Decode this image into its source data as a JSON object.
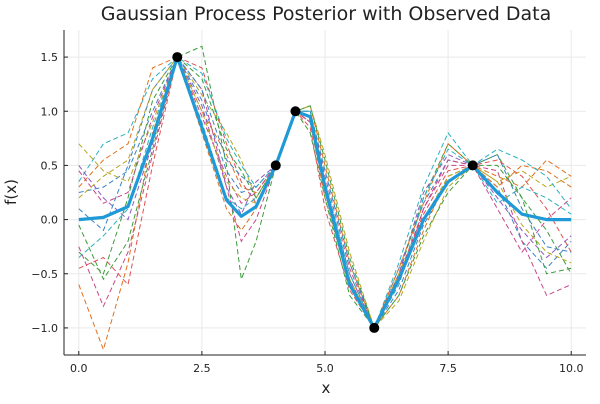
{
  "chart_data": {
    "type": "line",
    "title": "Gaussian Process Posterior with Observed Data",
    "xlabel": "x",
    "ylabel": "f(x)",
    "xlim": [
      -0.3,
      10.3
    ],
    "ylim": [
      -1.25,
      1.75
    ],
    "xticks": [
      0.0,
      2.5,
      5.0,
      7.5,
      10.0
    ],
    "xtick_labels": [
      "0.0",
      "2.5",
      "5.0",
      "7.5",
      "10.0"
    ],
    "yticks": [
      -1.0,
      -0.5,
      0.0,
      0.5,
      1.0,
      1.5
    ],
    "ytick_labels": [
      "−1.0",
      "−0.5",
      "0.0",
      "0.5",
      "1.0",
      "1.5"
    ],
    "grid": true,
    "legend": "none",
    "mean_color": "#1f9ad6",
    "series_colors": [
      "#3b82c4",
      "#e0701e",
      "#3a9b3a",
      "#c8468a",
      "#2ab0c0",
      "#b7a620",
      "#e05050",
      "#8c5cc0"
    ],
    "observed_points": {
      "x": [
        2.0,
        4.0,
        4.4,
        6.0,
        8.0
      ],
      "y": [
        1.5,
        0.5,
        1.0,
        -1.0,
        0.5
      ],
      "color": "#000000"
    },
    "mean": {
      "x": [
        0.0,
        0.5,
        1.0,
        1.5,
        2.0,
        2.5,
        3.0,
        3.3,
        3.6,
        4.0,
        4.4,
        4.7,
        5.0,
        5.5,
        6.0,
        6.5,
        7.0,
        7.5,
        8.0,
        8.5,
        9.0,
        9.5,
        10.0
      ],
      "y": [
        0.0,
        0.02,
        0.12,
        0.75,
        1.5,
        0.85,
        0.18,
        0.03,
        0.12,
        0.5,
        1.0,
        0.95,
        0.3,
        -0.6,
        -1.0,
        -0.55,
        0.0,
        0.35,
        0.5,
        0.25,
        0.05,
        0.0,
        0.0
      ]
    },
    "samples": [
      {
        "x": [
          0,
          0.5,
          1,
          1.5,
          2,
          2.5,
          3,
          3.3,
          3.6,
          4,
          4.4,
          4.7,
          5,
          5.5,
          6,
          6.5,
          7,
          7.5,
          8,
          8.5,
          9,
          9.5,
          10
        ],
        "y": [
          0.25,
          0.3,
          0.45,
          1.0,
          1.5,
          1.1,
          0.45,
          0.25,
          0.3,
          0.5,
          1.0,
          0.9,
          0.25,
          -0.55,
          -1.0,
          -0.45,
          0.15,
          0.55,
          0.5,
          0.3,
          -0.2,
          -0.45,
          -0.2
        ]
      },
      {
        "x": [
          0,
          0.5,
          1,
          1.5,
          2,
          2.5,
          3,
          3.3,
          3.6,
          4,
          4.4,
          4.7,
          5,
          5.5,
          6,
          6.5,
          7,
          7.5,
          8,
          8.5,
          9,
          9.5,
          10
        ],
        "y": [
          -0.6,
          -1.2,
          -0.4,
          0.8,
          1.5,
          1.0,
          0.6,
          0.3,
          0.25,
          0.5,
          1.0,
          1.05,
          0.5,
          -0.4,
          -1.0,
          -0.7,
          -0.1,
          0.4,
          0.5,
          0.4,
          0.3,
          0.55,
          0.4
        ]
      },
      {
        "x": [
          0,
          0.5,
          1,
          1.5,
          2,
          2.5,
          3,
          3.3,
          3.6,
          4,
          4.4,
          4.7,
          5,
          5.5,
          6,
          6.5,
          7,
          7.5,
          8,
          8.5,
          9,
          9.5,
          10
        ],
        "y": [
          -0.3,
          -0.5,
          0.2,
          1.1,
          1.5,
          1.6,
          0.5,
          -0.55,
          -0.2,
          0.5,
          1.0,
          0.8,
          0.2,
          -0.7,
          -1.0,
          -0.5,
          0.2,
          0.7,
          0.5,
          0.6,
          0.2,
          -0.1,
          -0.5
        ]
      },
      {
        "x": [
          0,
          0.5,
          1,
          1.5,
          2,
          2.5,
          3,
          3.3,
          3.6,
          4,
          4.4,
          4.7,
          5,
          5.5,
          6,
          6.5,
          7,
          7.5,
          8,
          8.5,
          9,
          9.5,
          10
        ],
        "y": [
          -0.25,
          -0.8,
          -0.3,
          0.6,
          1.5,
          1.2,
          0.3,
          -0.2,
          0.0,
          0.5,
          1.0,
          1.0,
          0.4,
          -0.45,
          -1.0,
          -0.6,
          0.1,
          0.5,
          0.5,
          0.45,
          -0.2,
          -0.7,
          -0.6
        ]
      },
      {
        "x": [
          0,
          0.5,
          1,
          1.5,
          2,
          2.5,
          3,
          3.3,
          3.6,
          4,
          4.4,
          4.7,
          5,
          5.5,
          6,
          6.5,
          7,
          7.5,
          8,
          8.5,
          9,
          9.5,
          10
        ],
        "y": [
          0.35,
          0.7,
          0.8,
          1.3,
          1.5,
          0.9,
          0.2,
          0.1,
          0.2,
          0.5,
          1.0,
          1.0,
          0.35,
          -0.5,
          -1.0,
          -0.4,
          0.3,
          0.8,
          0.5,
          0.15,
          0.3,
          0.2,
          0.05
        ]
      },
      {
        "x": [
          0,
          0.5,
          1,
          1.5,
          2,
          2.5,
          3,
          3.3,
          3.6,
          4,
          4.4,
          4.7,
          5,
          5.5,
          6,
          6.5,
          7,
          7.5,
          8,
          8.5,
          9,
          9.5,
          10
        ],
        "y": [
          0.7,
          0.45,
          0.35,
          0.9,
          1.5,
          1.15,
          0.8,
          0.55,
          0.2,
          0.5,
          1.0,
          1.05,
          0.6,
          -0.3,
          -1.0,
          -0.75,
          -0.2,
          0.3,
          0.5,
          0.35,
          0.45,
          0.3,
          0.4
        ]
      },
      {
        "x": [
          0,
          0.5,
          1,
          1.5,
          2,
          2.5,
          3,
          3.3,
          3.6,
          4,
          4.4,
          4.7,
          5,
          5.5,
          6,
          6.5,
          7,
          7.5,
          8,
          8.5,
          9,
          9.5,
          10
        ],
        "y": [
          -0.45,
          -0.35,
          -0.6,
          0.5,
          1.5,
          1.4,
          0.7,
          0.35,
          0.15,
          0.5,
          1.0,
          0.85,
          0.1,
          -0.65,
          -1.0,
          -0.5,
          0.05,
          0.45,
          0.5,
          0.55,
          0.4,
          0.1,
          -0.3
        ]
      },
      {
        "x": [
          0,
          0.5,
          1,
          1.5,
          2,
          2.5,
          3,
          3.3,
          3.6,
          4,
          4.4,
          4.7,
          5,
          5.5,
          6,
          6.5,
          7,
          7.5,
          8,
          8.5,
          9,
          9.5,
          10
        ],
        "y": [
          0.5,
          0.2,
          0.0,
          0.7,
          1.5,
          1.05,
          0.3,
          0.05,
          0.35,
          0.5,
          1.0,
          0.95,
          0.3,
          -0.55,
          -1.0,
          -0.5,
          0.25,
          0.6,
          0.5,
          0.2,
          -0.1,
          -0.35,
          -0.15
        ]
      },
      {
        "x": [
          0,
          0.5,
          1,
          1.5,
          2,
          2.5,
          3,
          3.3,
          3.6,
          4,
          4.4,
          4.7,
          5,
          5.5,
          6,
          6.5,
          7,
          7.5,
          8,
          8.5,
          9,
          9.5,
          10
        ],
        "y": [
          0.1,
          -0.1,
          0.5,
          1.2,
          1.5,
          1.2,
          0.55,
          0.4,
          0.3,
          0.5,
          1.0,
          1.0,
          0.45,
          -0.4,
          -1.0,
          -0.65,
          -0.05,
          0.35,
          0.5,
          0.6,
          0.1,
          -0.25,
          -0.3
        ]
      },
      {
        "x": [
          0,
          0.5,
          1,
          1.5,
          2,
          2.5,
          3,
          3.3,
          3.6,
          4,
          4.4,
          4.7,
          5,
          5.5,
          6,
          6.5,
          7,
          7.5,
          8,
          8.5,
          9,
          9.5,
          10
        ],
        "y": [
          0.3,
          0.55,
          0.7,
          1.4,
          1.5,
          0.8,
          0.1,
          -0.1,
          0.1,
          0.5,
          1.0,
          0.9,
          0.2,
          -0.6,
          -1.0,
          -0.45,
          0.15,
          0.7,
          0.5,
          0.3,
          0.5,
          0.45,
          0.3
        ]
      },
      {
        "x": [
          0,
          0.5,
          1,
          1.5,
          2,
          2.5,
          3,
          3.3,
          3.6,
          4,
          4.4,
          4.7,
          5,
          5.5,
          6,
          6.5,
          7,
          7.5,
          8,
          8.5,
          9,
          9.5,
          10
        ],
        "y": [
          -0.05,
          -0.55,
          -0.2,
          0.65,
          1.5,
          1.3,
          0.65,
          0.45,
          0.2,
          0.5,
          1.0,
          1.05,
          0.55,
          -0.35,
          -1.0,
          -0.7,
          -0.15,
          0.25,
          0.5,
          0.5,
          0.2,
          -0.5,
          -0.45
        ]
      },
      {
        "x": [
          0,
          0.5,
          1,
          1.5,
          2,
          2.5,
          3,
          3.3,
          3.6,
          4,
          4.4,
          4.7,
          5,
          5.5,
          6,
          6.5,
          7,
          7.5,
          8,
          8.5,
          9,
          9.5,
          10
        ],
        "y": [
          0.45,
          0.15,
          0.25,
          0.95,
          1.5,
          0.95,
          0.4,
          0.15,
          0.25,
          0.5,
          1.0,
          0.9,
          0.3,
          -0.5,
          -1.0,
          -0.55,
          0.1,
          0.55,
          0.5,
          0.1,
          -0.3,
          0.0,
          0.2
        ]
      },
      {
        "x": [
          0,
          0.5,
          1,
          1.5,
          2,
          2.5,
          3,
          3.3,
          3.6,
          4,
          4.4,
          4.7,
          5,
          5.5,
          6,
          6.5,
          7,
          7.5,
          8,
          8.5,
          9,
          9.5,
          10
        ],
        "y": [
          -0.35,
          -0.15,
          0.1,
          0.85,
          1.5,
          1.35,
          0.75,
          0.5,
          0.3,
          0.5,
          1.0,
          1.0,
          0.35,
          -0.5,
          -1.0,
          -0.6,
          0.2,
          0.65,
          0.5,
          0.65,
          0.55,
          0.4,
          0.1
        ]
      },
      {
        "x": [
          0,
          0.5,
          1,
          1.5,
          2,
          2.5,
          3,
          3.3,
          3.6,
          4,
          4.4,
          4.7,
          5,
          5.5,
          6,
          6.5,
          7,
          7.5,
          8,
          8.5,
          9,
          9.5,
          10
        ],
        "y": [
          0.2,
          0.4,
          0.55,
          1.2,
          1.5,
          1.0,
          0.35,
          0.2,
          0.15,
          0.5,
          1.0,
          0.95,
          0.25,
          -0.55,
          -1.0,
          -0.5,
          0.0,
          0.4,
          0.5,
          0.35,
          -0.05,
          -0.3,
          -0.4
        ]
      }
    ]
  }
}
